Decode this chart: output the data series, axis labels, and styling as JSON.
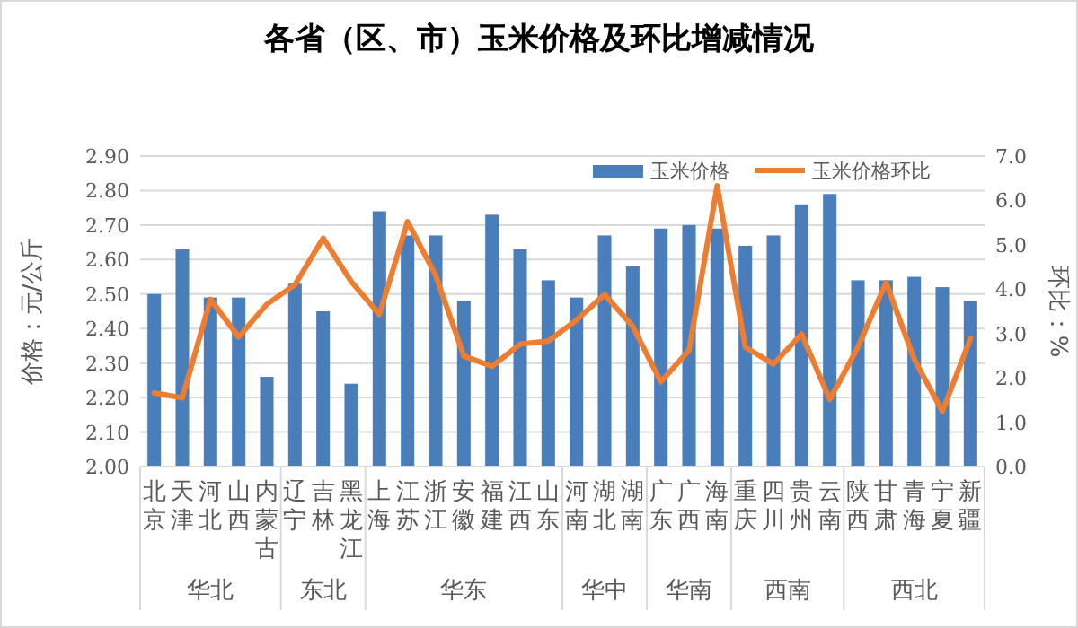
{
  "chart_data": {
    "type": "bar",
    "title": "各省（区、市）玉米价格及环比增减情况",
    "ylabel": "价格：元/公斤",
    "y2label": "环比：%",
    "categories": [
      "北京",
      "天津",
      "河北",
      "山西",
      "内蒙古",
      "辽宁",
      "吉林",
      "黑龙江",
      "上海",
      "江苏",
      "浙江",
      "安徽",
      "福建",
      "江西",
      "山东",
      "河南",
      "湖北",
      "湖南",
      "广东",
      "广西",
      "海南",
      "重庆",
      "四川",
      "贵州",
      "云南",
      "陕西",
      "甘肃",
      "青海",
      "宁夏",
      "新疆"
    ],
    "series": [
      {
        "name": "玉米价格",
        "color": "#4a7ebb",
        "values": [
          2.5,
          2.63,
          2.49,
          2.49,
          2.26,
          2.53,
          2.45,
          2.24,
          2.74,
          2.67,
          2.67,
          2.48,
          2.73,
          2.63,
          2.54,
          2.49,
          2.67,
          2.58,
          2.69,
          2.7,
          2.69,
          2.64,
          2.67,
          2.76,
          2.79,
          2.54,
          2.54,
          2.55,
          2.52,
          2.48
        ]
      },
      {
        "name": "玉米价格环比",
        "type": "line",
        "axis": "y2",
        "color": "#ed7d31",
        "values": [
          1.66,
          1.55,
          3.77,
          2.92,
          3.66,
          4.1,
          5.15,
          4.17,
          3.43,
          5.52,
          4.31,
          2.49,
          2.26,
          2.76,
          2.83,
          3.3,
          3.88,
          3.16,
          1.91,
          2.62,
          6.33,
          2.69,
          2.31,
          2.99,
          1.51,
          2.69,
          4.15,
          2.42,
          1.24,
          2.89
        ]
      }
    ],
    "ylim": [
      2.0,
      2.9
    ],
    "yticks": [
      {
        "value": 2.0,
        "label": "2.00"
      },
      {
        "value": 2.1,
        "label": "2.10"
      },
      {
        "value": 2.2,
        "label": "2.20"
      },
      {
        "value": 2.3,
        "label": "2.30"
      },
      {
        "value": 2.4,
        "label": "2.40"
      },
      {
        "value": 2.5,
        "label": "2.50"
      },
      {
        "value": 2.6,
        "label": "2.60"
      },
      {
        "value": 2.7,
        "label": "2.70"
      },
      {
        "value": 2.8,
        "label": "2.80"
      },
      {
        "value": 2.9,
        "label": "2.90"
      }
    ],
    "y2lim": [
      0,
      7
    ],
    "y2ticks": [
      {
        "value": 0,
        "label": "0.0"
      },
      {
        "value": 1,
        "label": "1.0"
      },
      {
        "value": 2,
        "label": "2.0"
      },
      {
        "value": 3,
        "label": "3.0"
      },
      {
        "value": 4,
        "label": "4.0"
      },
      {
        "value": 5,
        "label": "5.0"
      },
      {
        "value": 6,
        "label": "6.0"
      },
      {
        "value": 7,
        "label": "7.0"
      }
    ],
    "annotations": [
      "华北",
      "东北",
      "华东",
      "华中",
      "华南",
      "西南",
      "西北"
    ],
    "grid": "y",
    "legend": "top right",
    "marker": "none",
    "line_style": "solid"
  }
}
